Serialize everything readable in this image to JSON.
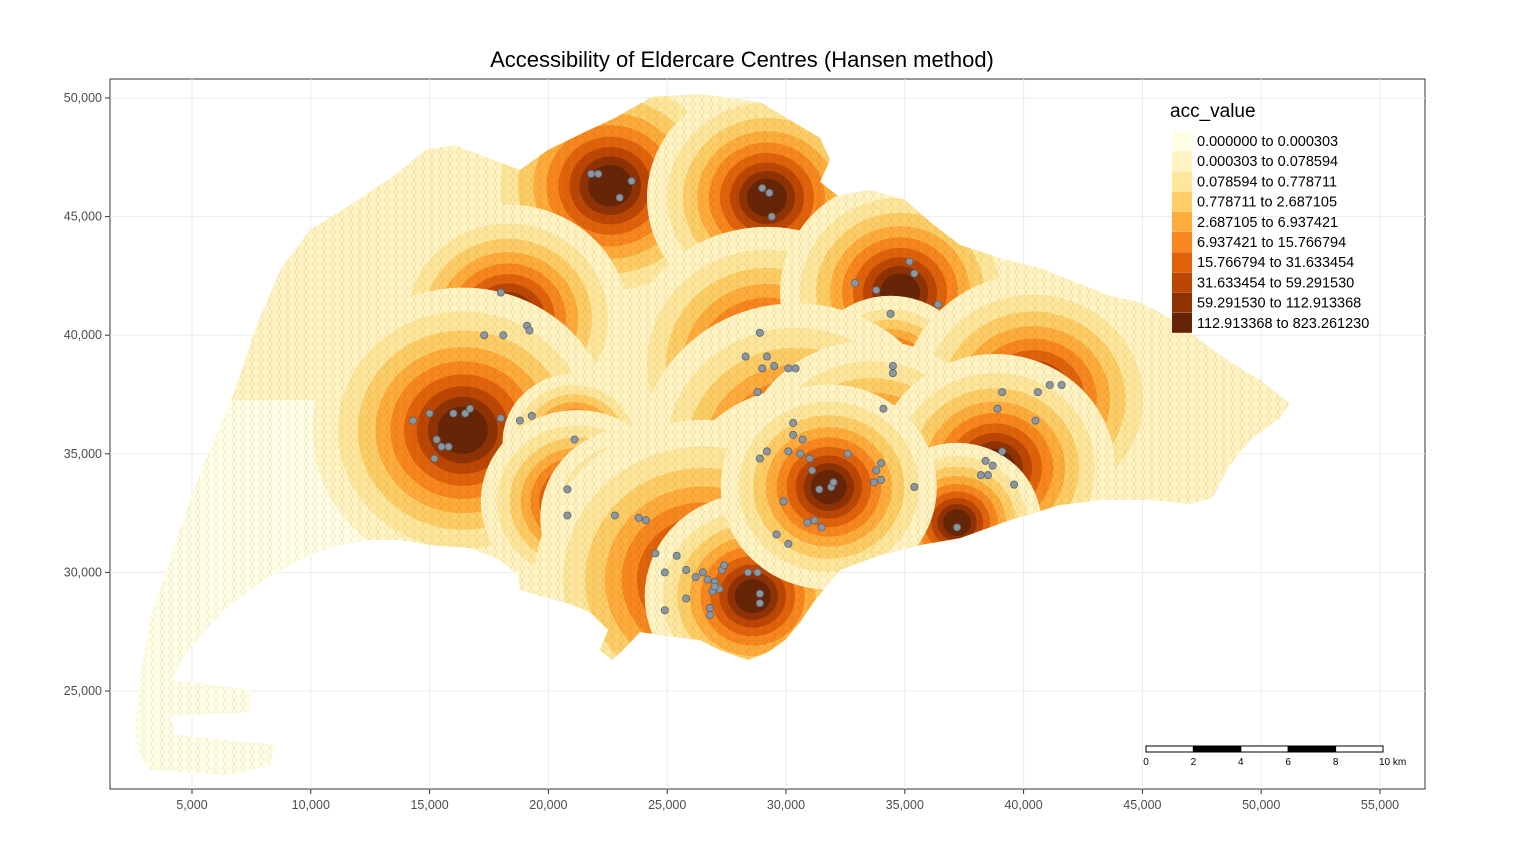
{
  "title": "Accessibility of Eldercare Centres (Hansen method)",
  "x_ticks": [
    "5,000",
    "10,000",
    "15,000",
    "20,000",
    "25,000",
    "30,000",
    "35,000",
    "40,000",
    "45,000",
    "50,000",
    "55,000"
  ],
  "y_ticks": [
    "50,000",
    "45,000",
    "40,000",
    "35,000",
    "30,000",
    "25,000"
  ],
  "legend": {
    "title": "acc_value",
    "items": [
      {
        "label": "0.000000 to 0.000303",
        "color": "#ffffe5"
      },
      {
        "label": "0.000303 to 0.078594",
        "color": "#fff4c2"
      },
      {
        "label": "0.078594 to 0.778711",
        "color": "#fee79b"
      },
      {
        "label": "0.778711 to 2.687105",
        "color": "#fece66"
      },
      {
        "label": "2.687105 to 6.937421",
        "color": "#feac3b"
      },
      {
        "label": "6.937421 to 15.766794",
        "color": "#f7871e"
      },
      {
        "label": "15.766794 to 31.633454",
        "color": "#e0630b"
      },
      {
        "label": "31.633454 to 59.291530",
        "color": "#bc4604"
      },
      {
        "label": "59.291530 to 112.913368",
        "color": "#8f3204"
      },
      {
        "label": "112.913368 to 823.261230",
        "color": "#662506"
      }
    ]
  },
  "scale_bar": {
    "labels": [
      "0",
      "2",
      "4",
      "6",
      "8",
      "10 km"
    ]
  },
  "point_color": "#8c96a0",
  "centres": [
    [
      21800,
      46800
    ],
    [
      22100,
      46800
    ],
    [
      23000,
      45800
    ],
    [
      23500,
      46500
    ],
    [
      29000,
      46200
    ],
    [
      29300,
      46000
    ],
    [
      29400,
      45000
    ],
    [
      18000,
      41800
    ],
    [
      17300,
      40000
    ],
    [
      18100,
      40000
    ],
    [
      19100,
      40400
    ],
    [
      19200,
      40200
    ],
    [
      28900,
      40100
    ],
    [
      28300,
      39100
    ],
    [
      29200,
      39100
    ],
    [
      29000,
      38600
    ],
    [
      29500,
      38700
    ],
    [
      30100,
      38600
    ],
    [
      30400,
      38600
    ],
    [
      28800,
      37600
    ],
    [
      32900,
      42200
    ],
    [
      33800,
      41900
    ],
    [
      34400,
      40900
    ],
    [
      35200,
      43100
    ],
    [
      35400,
      42600
    ],
    [
      36400,
      41300
    ],
    [
      34500,
      38700
    ],
    [
      34500,
      38400
    ],
    [
      34100,
      36900
    ],
    [
      40600,
      37600
    ],
    [
      41100,
      37900
    ],
    [
      41600,
      37900
    ],
    [
      39100,
      37600
    ],
    [
      38900,
      36900
    ],
    [
      40500,
      36400
    ],
    [
      14300,
      36400
    ],
    [
      15000,
      36700
    ],
    [
      16000,
      36700
    ],
    [
      16500,
      36700
    ],
    [
      16700,
      36900
    ],
    [
      18000,
      36500
    ],
    [
      18800,
      36400
    ],
    [
      19300,
      36600
    ],
    [
      15300,
      35600
    ],
    [
      15500,
      35300
    ],
    [
      15800,
      35300
    ],
    [
      15200,
      34800
    ],
    [
      21100,
      35600
    ],
    [
      30300,
      36300
    ],
    [
      30300,
      35800
    ],
    [
      30700,
      35600
    ],
    [
      30100,
      35100
    ],
    [
      30600,
      35000
    ],
    [
      31000,
      34800
    ],
    [
      29200,
      35100
    ],
    [
      28900,
      34800
    ],
    [
      31100,
      34300
    ],
    [
      32600,
      35000
    ],
    [
      33800,
      34300
    ],
    [
      34000,
      34600
    ],
    [
      33700,
      33800
    ],
    [
      34000,
      33900
    ],
    [
      35400,
      33600
    ],
    [
      31400,
      33500
    ],
    [
      31900,
      33600
    ],
    [
      32000,
      33800
    ],
    [
      29900,
      33000
    ],
    [
      38200,
      34100
    ],
    [
      38500,
      34100
    ],
    [
      38400,
      34700
    ],
    [
      38700,
      34500
    ],
    [
      39100,
      35100
    ],
    [
      39600,
      33700
    ],
    [
      20800,
      33500
    ],
    [
      20800,
      32400
    ],
    [
      22800,
      32400
    ],
    [
      23800,
      32300
    ],
    [
      24100,
      32200
    ],
    [
      30900,
      32100
    ],
    [
      31500,
      31900
    ],
    [
      31200,
      32200
    ],
    [
      29600,
      31600
    ],
    [
      37200,
      31900
    ],
    [
      30100,
      31200
    ],
    [
      24500,
      30800
    ],
    [
      25400,
      30700
    ],
    [
      24900,
      30000
    ],
    [
      25800,
      30100
    ],
    [
      26200,
      29800
    ],
    [
      26500,
      30000
    ],
    [
      26700,
      29700
    ],
    [
      27000,
      29600
    ],
    [
      27300,
      30100
    ],
    [
      27400,
      30300
    ],
    [
      27200,
      29300
    ],
    [
      26900,
      29200
    ],
    [
      27000,
      29400
    ],
    [
      28400,
      30000
    ],
    [
      28800,
      30000
    ],
    [
      25800,
      28900
    ],
    [
      26800,
      28500
    ],
    [
      28900,
      29100
    ],
    [
      28900,
      28700
    ],
    [
      24900,
      28400
    ],
    [
      26800,
      28200
    ]
  ],
  "hotspots": [
    [
      22600,
      46300,
      1.1
    ],
    [
      29200,
      45800,
      1.0
    ],
    [
      18300,
      40700,
      1.0
    ],
    [
      29200,
      38800,
      1.2
    ],
    [
      34800,
      41800,
      1.0
    ],
    [
      34400,
      38300,
      0.7
    ],
    [
      40400,
      37300,
      1.1
    ],
    [
      16400,
      36000,
      1.25
    ],
    [
      21100,
      35500,
      0.6
    ],
    [
      30400,
      35100,
      1.3
    ],
    [
      33600,
      34500,
      1.1
    ],
    [
      38800,
      34400,
      1.0
    ],
    [
      21200,
      33000,
      0.8
    ],
    [
      23700,
      32300,
      0.8
    ],
    [
      30700,
      32500,
      1.1
    ],
    [
      37200,
      32100,
      0.7
    ],
    [
      26500,
      29700,
      1.4
    ],
    [
      28600,
      29000,
      0.9
    ],
    [
      31800,
      33600,
      0.9
    ]
  ]
}
